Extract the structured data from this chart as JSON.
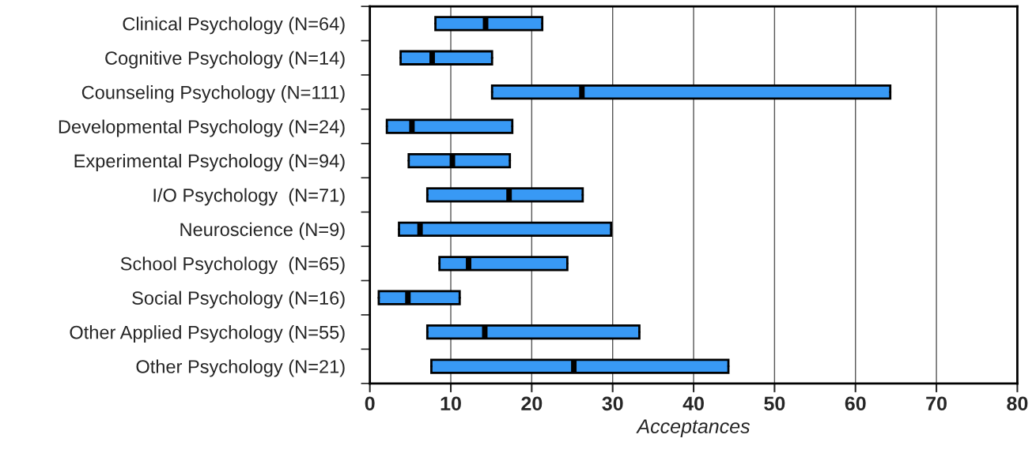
{
  "chart_data": {
    "type": "box",
    "orientation": "horizontal",
    "xlabel": "Acceptances",
    "categories": [
      "Clinical Psychology (N=64)",
      "Cognitive Psychology (N=14)",
      "Counseling Psychology (N=111)",
      "Developmental Psychology (N=24)",
      "Experimental Psychology (N=94)",
      "I/O Psychology  (N=71)",
      "Neuroscience (N=9)",
      "School Psychology  (N=65)",
      "Social Psychology (N=16)",
      "Other Applied Psychology (N=55)",
      "Other Psychology (N=21)"
    ],
    "boxes": [
      {
        "low": 8.1,
        "q1": 8.1,
        "median": 14.3,
        "q3": 21.3,
        "high": 21.3
      },
      {
        "low": 3.8,
        "q1": 3.8,
        "median": 7.7,
        "q3": 15.1,
        "high": 15.1
      },
      {
        "low": 15.1,
        "q1": 15.1,
        "median": 26.2,
        "q3": 64.3,
        "high": 64.3
      },
      {
        "low": 2.1,
        "q1": 2.1,
        "median": 5.2,
        "q3": 17.6,
        "high": 17.6
      },
      {
        "low": 4.8,
        "q1": 4.8,
        "median": 10.2,
        "q3": 17.3,
        "high": 17.3
      },
      {
        "low": 7.1,
        "q1": 7.1,
        "median": 17.2,
        "q3": 26.3,
        "high": 26.3
      },
      {
        "low": 3.6,
        "q1": 3.6,
        "median": 6.2,
        "q3": 29.8,
        "high": 29.8
      },
      {
        "low": 8.6,
        "q1": 8.6,
        "median": 12.2,
        "q3": 24.4,
        "high": 24.4
      },
      {
        "low": 1.1,
        "q1": 1.1,
        "median": 4.7,
        "q3": 11.1,
        "high": 11.1
      },
      {
        "low": 7.1,
        "q1": 7.1,
        "median": 14.2,
        "q3": 33.3,
        "high": 33.3
      },
      {
        "low": 7.6,
        "q1": 7.6,
        "median": 25.2,
        "q3": 44.3,
        "high": 44.3
      }
    ],
    "color": "#3899f5",
    "xlim": [
      0,
      80
    ],
    "xticks": [
      0,
      10,
      20,
      30,
      40,
      50,
      60,
      70,
      80
    ],
    "grid": "x"
  }
}
